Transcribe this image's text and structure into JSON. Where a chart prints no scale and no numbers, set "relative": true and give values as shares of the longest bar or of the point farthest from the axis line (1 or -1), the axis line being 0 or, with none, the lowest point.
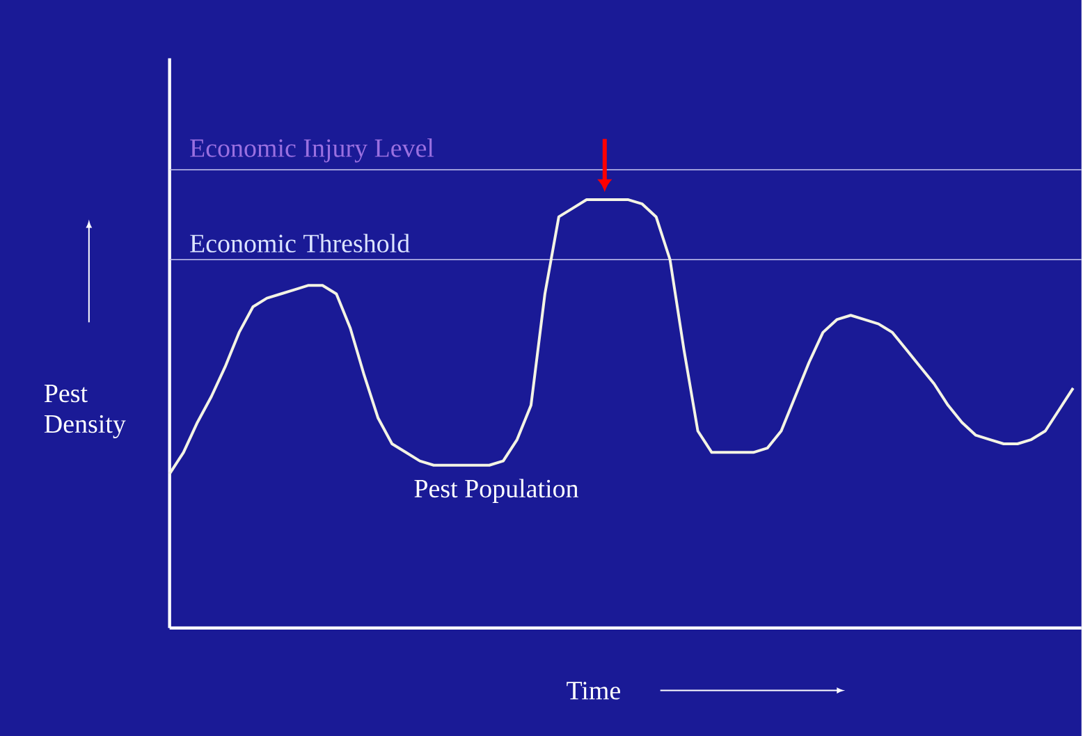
{
  "chart_data": {
    "type": "line",
    "relative": true,
    "xlabel": "Time",
    "ylabel": "Pest Density",
    "color": "#f4f4e4",
    "categories": [
      null,
      null,
      null,
      null,
      null,
      null,
      null,
      null,
      null,
      null,
      null,
      null,
      null,
      null,
      null,
      null,
      null,
      null,
      null,
      null,
      null,
      null,
      null,
      null,
      null,
      null,
      null,
      null,
      null,
      null,
      null,
      null,
      null,
      null,
      null,
      null,
      null,
      null,
      null,
      null,
      null,
      null,
      null,
      null,
      null,
      null,
      null,
      null,
      null,
      null,
      null,
      null,
      null,
      null,
      null,
      null,
      null,
      null,
      null,
      null,
      null,
      null,
      null,
      null,
      null,
      null
    ],
    "values": [
      0.36,
      0.41,
      0.48,
      0.54,
      0.61,
      0.69,
      0.75,
      0.77,
      0.78,
      0.79,
      0.8,
      0.8,
      0.78,
      0.7,
      0.59,
      0.49,
      0.43,
      0.41,
      0.39,
      0.38,
      0.38,
      0.38,
      0.38,
      0.38,
      0.39,
      0.44,
      0.52,
      0.78,
      0.96,
      0.98,
      1.0,
      1.0,
      1.0,
      1.0,
      0.99,
      0.96,
      0.86,
      0.65,
      0.46,
      0.41,
      0.41,
      0.41,
      0.41,
      0.42,
      0.46,
      0.54,
      0.62,
      0.69,
      0.72,
      0.73,
      0.72,
      0.71,
      0.69,
      0.65,
      0.61,
      0.57,
      0.52,
      0.48,
      0.45,
      0.44,
      0.43,
      0.43,
      0.44,
      0.46,
      0.51,
      0.56
    ],
    "ref_lines": [
      {
        "axis": "y",
        "value": 1.07,
        "label": "Economic Injury Level",
        "color": "#c8c8f0"
      },
      {
        "axis": "y",
        "value": 0.86,
        "label": "Economic Threshold",
        "color": "#c8c8f0"
      }
    ],
    "annotations": [
      "Pest Population"
    ]
  }
}
